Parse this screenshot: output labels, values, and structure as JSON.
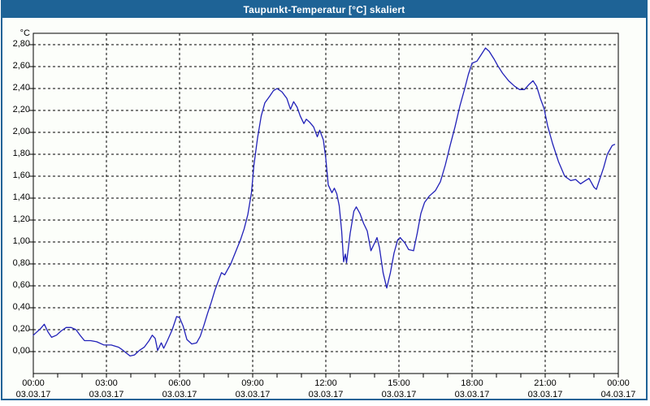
{
  "window": {
    "title": "Taupunkt-Temperatur [°C] skaliert",
    "titlebar_color": "#1E6396",
    "titlebar_text_color": "#FFFFFF",
    "frame_color": "#1E6396",
    "content_background": "#FCFEFA"
  },
  "chart_data": {
    "type": "line",
    "title": "Taupunkt-Temperatur [°C] skaliert",
    "unit_label": "°C",
    "line_color": "#2121B8",
    "grid": "dashed",
    "grid_color": "#000000",
    "plot_background": "#FFFFFF",
    "legend": "none",
    "y_axis": {
      "axis_min": -0.2,
      "axis_max": 2.9,
      "tick_step": 0.2,
      "ticks": [
        {
          "value": 2.8,
          "label": "2,80"
        },
        {
          "value": 2.6,
          "label": "2,60"
        },
        {
          "value": 2.4,
          "label": "2,40"
        },
        {
          "value": 2.2,
          "label": "2,20"
        },
        {
          "value": 2.0,
          "label": "2,00"
        },
        {
          "value": 1.8,
          "label": "1,80"
        },
        {
          "value": 1.6,
          "label": "1,60"
        },
        {
          "value": 1.4,
          "label": "1,40"
        },
        {
          "value": 1.2,
          "label": "1,20"
        },
        {
          "value": 1.0,
          "label": "1,00"
        },
        {
          "value": 0.8,
          "label": "0,80"
        },
        {
          "value": 0.6,
          "label": "0,60"
        },
        {
          "value": 0.4,
          "label": "0,40"
        },
        {
          "value": 0.2,
          "label": "0,20"
        },
        {
          "value": 0.0,
          "label": "0,00"
        }
      ]
    },
    "x_axis": {
      "start_hour": 0,
      "end_hour": 24,
      "minor_tick_hours": 1,
      "major_tick_hours": 3,
      "labels": [
        {
          "hour": 0,
          "time": "00:00",
          "date": "03.03.17"
        },
        {
          "hour": 3,
          "time": "03:00",
          "date": "03.03.17"
        },
        {
          "hour": 6,
          "time": "06:00",
          "date": "03.03.17"
        },
        {
          "hour": 9,
          "time": "09:00",
          "date": "03.03.17"
        },
        {
          "hour": 12,
          "time": "12:00",
          "date": "03.03.17"
        },
        {
          "hour": 15,
          "time": "15:00",
          "date": "03.03.17"
        },
        {
          "hour": 18,
          "time": "18:00",
          "date": "03.03.17"
        },
        {
          "hour": 21,
          "time": "21:00",
          "date": "03.03.17"
        },
        {
          "hour": 24,
          "time": "00:00",
          "date": "04.03.17"
        }
      ]
    },
    "series": [
      {
        "name": "Taupunkt-Temperatur",
        "points": [
          [
            0.0,
            0.15
          ],
          [
            0.15,
            0.18
          ],
          [
            0.3,
            0.21
          ],
          [
            0.45,
            0.25
          ],
          [
            0.6,
            0.18
          ],
          [
            0.75,
            0.13
          ],
          [
            0.95,
            0.15
          ],
          [
            1.15,
            0.19
          ],
          [
            1.35,
            0.22
          ],
          [
            1.55,
            0.22
          ],
          [
            1.75,
            0.2
          ],
          [
            1.95,
            0.14
          ],
          [
            2.1,
            0.1
          ],
          [
            2.35,
            0.1
          ],
          [
            2.6,
            0.09
          ],
          [
            2.9,
            0.06
          ],
          [
            3.2,
            0.06
          ],
          [
            3.5,
            0.04
          ],
          [
            3.63,
            0.02
          ],
          [
            3.8,
            -0.01
          ],
          [
            3.97,
            -0.04
          ],
          [
            4.15,
            -0.03
          ],
          [
            4.35,
            0.01
          ],
          [
            4.55,
            0.04
          ],
          [
            4.75,
            0.1
          ],
          [
            4.88,
            0.15
          ],
          [
            5.0,
            0.12
          ],
          [
            5.1,
            0.01
          ],
          [
            5.25,
            0.08
          ],
          [
            5.35,
            0.03
          ],
          [
            5.5,
            0.1
          ],
          [
            5.7,
            0.2
          ],
          [
            5.88,
            0.32
          ],
          [
            6.0,
            0.31
          ],
          [
            6.15,
            0.23
          ],
          [
            6.3,
            0.11
          ],
          [
            6.5,
            0.07
          ],
          [
            6.7,
            0.08
          ],
          [
            6.85,
            0.14
          ],
          [
            7.0,
            0.24
          ],
          [
            7.15,
            0.35
          ],
          [
            7.3,
            0.45
          ],
          [
            7.45,
            0.56
          ],
          [
            7.6,
            0.65
          ],
          [
            7.72,
            0.72
          ],
          [
            7.85,
            0.7
          ],
          [
            7.95,
            0.74
          ],
          [
            8.1,
            0.8
          ],
          [
            8.3,
            0.91
          ],
          [
            8.5,
            1.02
          ],
          [
            8.65,
            1.12
          ],
          [
            8.8,
            1.25
          ],
          [
            8.95,
            1.45
          ],
          [
            9.05,
            1.7
          ],
          [
            9.2,
            1.95
          ],
          [
            9.35,
            2.15
          ],
          [
            9.5,
            2.27
          ],
          [
            9.7,
            2.33
          ],
          [
            9.85,
            2.38
          ],
          [
            10.0,
            2.4
          ],
          [
            10.2,
            2.37
          ],
          [
            10.4,
            2.31
          ],
          [
            10.55,
            2.21
          ],
          [
            10.68,
            2.28
          ],
          [
            10.82,
            2.23
          ],
          [
            10.95,
            2.15
          ],
          [
            11.1,
            2.08
          ],
          [
            11.2,
            2.12
          ],
          [
            11.35,
            2.09
          ],
          [
            11.5,
            2.05
          ],
          [
            11.65,
            1.96
          ],
          [
            11.75,
            2.02
          ],
          [
            11.9,
            1.93
          ],
          [
            12.0,
            1.76
          ],
          [
            12.1,
            1.52
          ],
          [
            12.25,
            1.45
          ],
          [
            12.35,
            1.49
          ],
          [
            12.45,
            1.44
          ],
          [
            12.55,
            1.33
          ],
          [
            12.65,
            1.1
          ],
          [
            12.73,
            0.82
          ],
          [
            12.8,
            0.89
          ],
          [
            12.85,
            0.81
          ],
          [
            13.0,
            1.08
          ],
          [
            13.15,
            1.28
          ],
          [
            13.25,
            1.32
          ],
          [
            13.4,
            1.26
          ],
          [
            13.55,
            1.17
          ],
          [
            13.7,
            1.1
          ],
          [
            13.85,
            0.92
          ],
          [
            14.0,
            0.99
          ],
          [
            14.1,
            1.04
          ],
          [
            14.2,
            0.95
          ],
          [
            14.35,
            0.72
          ],
          [
            14.5,
            0.58
          ],
          [
            14.65,
            0.72
          ],
          [
            14.8,
            0.9
          ],
          [
            14.95,
            1.02
          ],
          [
            15.05,
            1.04
          ],
          [
            15.25,
            0.99
          ],
          [
            15.4,
            0.93
          ],
          [
            15.6,
            0.92
          ],
          [
            15.75,
            1.08
          ],
          [
            15.9,
            1.26
          ],
          [
            16.05,
            1.36
          ],
          [
            16.25,
            1.42
          ],
          [
            16.5,
            1.47
          ],
          [
            16.7,
            1.55
          ],
          [
            16.9,
            1.7
          ],
          [
            17.1,
            1.88
          ],
          [
            17.3,
            2.05
          ],
          [
            17.5,
            2.24
          ],
          [
            17.7,
            2.4
          ],
          [
            17.85,
            2.53
          ],
          [
            18.0,
            2.63
          ],
          [
            18.2,
            2.65
          ],
          [
            18.35,
            2.7
          ],
          [
            18.55,
            2.77
          ],
          [
            18.7,
            2.74
          ],
          [
            18.9,
            2.67
          ],
          [
            19.05,
            2.61
          ],
          [
            19.25,
            2.54
          ],
          [
            19.5,
            2.47
          ],
          [
            19.75,
            2.42
          ],
          [
            19.95,
            2.39
          ],
          [
            20.15,
            2.39
          ],
          [
            20.35,
            2.44
          ],
          [
            20.5,
            2.47
          ],
          [
            20.65,
            2.42
          ],
          [
            20.8,
            2.31
          ],
          [
            20.95,
            2.22
          ],
          [
            21.1,
            2.06
          ],
          [
            21.3,
            1.9
          ],
          [
            21.55,
            1.73
          ],
          [
            21.8,
            1.6
          ],
          [
            22.05,
            1.56
          ],
          [
            22.25,
            1.57
          ],
          [
            22.45,
            1.53
          ],
          [
            22.65,
            1.56
          ],
          [
            22.8,
            1.58
          ],
          [
            23.0,
            1.5
          ],
          [
            23.1,
            1.48
          ],
          [
            23.25,
            1.58
          ],
          [
            23.4,
            1.68
          ],
          [
            23.55,
            1.8
          ],
          [
            23.75,
            1.88
          ],
          [
            23.85,
            1.89
          ]
        ]
      }
    ]
  }
}
